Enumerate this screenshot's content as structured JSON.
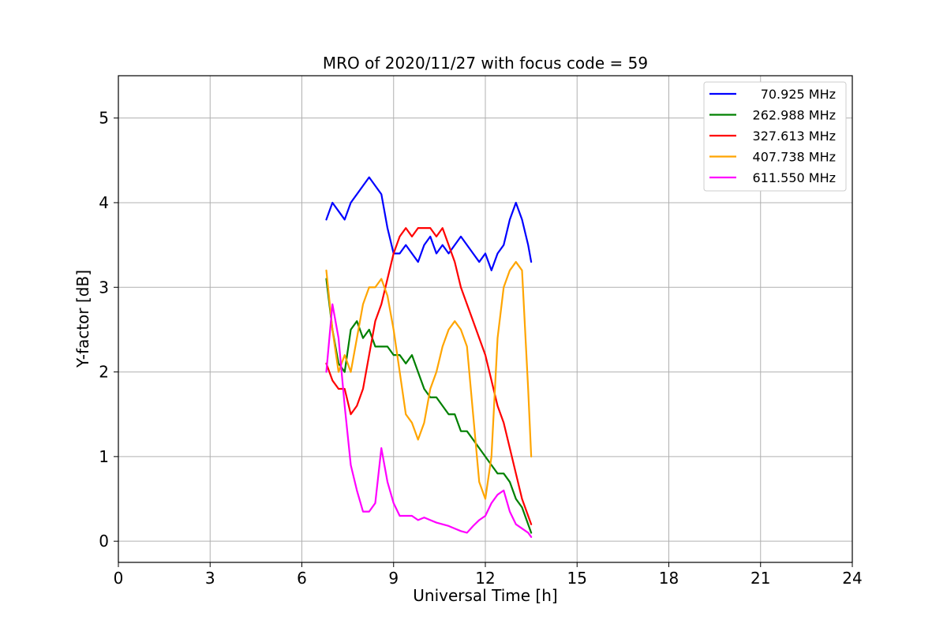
{
  "chart_data": {
    "type": "line",
    "title": "MRO of 2020/11/27 with focus code = 59",
    "xlabel": "Universal Time [h]",
    "ylabel": "Y-factor [dB]",
    "xlim": [
      0,
      24
    ],
    "ylim": [
      -0.25,
      5.5
    ],
    "xticks": [
      0,
      3,
      6,
      9,
      12,
      15,
      18,
      21,
      24
    ],
    "yticks": [
      0,
      1,
      2,
      3,
      4,
      5
    ],
    "grid": true,
    "legend_position": "top-right",
    "series": [
      {
        "name": "70.925 MHz",
        "color": "#0000ff",
        "x": [
          6.8,
          7.0,
          7.2,
          7.4,
          7.6,
          7.8,
          8.0,
          8.2,
          8.4,
          8.6,
          8.8,
          9.0,
          9.2,
          9.4,
          9.6,
          9.8,
          10.0,
          10.2,
          10.4,
          10.6,
          10.8,
          11.0,
          11.2,
          11.4,
          11.6,
          11.8,
          12.0,
          12.2,
          12.4,
          12.6,
          12.8,
          13.0,
          13.2,
          13.4,
          13.5
        ],
        "y": [
          3.8,
          4.0,
          3.9,
          3.8,
          4.0,
          4.1,
          4.2,
          4.3,
          4.2,
          4.1,
          3.7,
          3.4,
          3.4,
          3.5,
          3.4,
          3.3,
          3.5,
          3.6,
          3.4,
          3.5,
          3.4,
          3.5,
          3.6,
          3.5,
          3.4,
          3.3,
          3.4,
          3.2,
          3.4,
          3.5,
          3.8,
          4.0,
          3.8,
          3.5,
          3.3
        ]
      },
      {
        "name": "262.988 MHz",
        "color": "#008000",
        "x": [
          6.8,
          7.0,
          7.2,
          7.4,
          7.6,
          7.8,
          8.0,
          8.2,
          8.4,
          8.6,
          8.8,
          9.0,
          9.2,
          9.4,
          9.6,
          9.8,
          10.0,
          10.2,
          10.4,
          10.6,
          10.8,
          11.0,
          11.2,
          11.4,
          11.6,
          11.8,
          12.0,
          12.2,
          12.4,
          12.6,
          12.8,
          13.0,
          13.2,
          13.4,
          13.5
        ],
        "y": [
          3.1,
          2.5,
          2.1,
          2.0,
          2.5,
          2.6,
          2.4,
          2.5,
          2.3,
          2.3,
          2.3,
          2.2,
          2.2,
          2.1,
          2.2,
          2.0,
          1.8,
          1.7,
          1.7,
          1.6,
          1.5,
          1.5,
          1.3,
          1.3,
          1.2,
          1.1,
          1.0,
          0.9,
          0.8,
          0.8,
          0.7,
          0.5,
          0.4,
          0.2,
          0.1
        ]
      },
      {
        "name": "327.613 MHz",
        "color": "#ff0000",
        "x": [
          6.8,
          7.0,
          7.2,
          7.4,
          7.6,
          7.8,
          8.0,
          8.2,
          8.4,
          8.6,
          8.8,
          9.0,
          9.2,
          9.4,
          9.6,
          9.8,
          10.0,
          10.2,
          10.4,
          10.6,
          10.8,
          11.0,
          11.2,
          11.4,
          11.6,
          11.8,
          12.0,
          12.2,
          12.4,
          12.6,
          12.8,
          13.0,
          13.2,
          13.4,
          13.5
        ],
        "y": [
          2.1,
          1.9,
          1.8,
          1.8,
          1.5,
          1.6,
          1.8,
          2.2,
          2.6,
          2.8,
          3.1,
          3.4,
          3.6,
          3.7,
          3.6,
          3.7,
          3.7,
          3.7,
          3.6,
          3.7,
          3.5,
          3.3,
          3.0,
          2.8,
          2.6,
          2.4,
          2.2,
          1.9,
          1.6,
          1.4,
          1.1,
          0.8,
          0.5,
          0.3,
          0.2
        ]
      },
      {
        "name": "407.738 MHz",
        "color": "#ffa500",
        "x": [
          6.8,
          7.0,
          7.2,
          7.4,
          7.6,
          7.8,
          8.0,
          8.2,
          8.4,
          8.6,
          8.8,
          9.0,
          9.2,
          9.4,
          9.6,
          9.8,
          10.0,
          10.2,
          10.4,
          10.6,
          10.8,
          11.0,
          11.2,
          11.4,
          11.6,
          11.8,
          12.0,
          12.2,
          12.4,
          12.6,
          12.8,
          13.0,
          13.2,
          13.4,
          13.5
        ],
        "y": [
          3.2,
          2.5,
          2.0,
          2.2,
          2.0,
          2.4,
          2.8,
          3.0,
          3.0,
          3.1,
          2.9,
          2.5,
          2.0,
          1.5,
          1.4,
          1.2,
          1.4,
          1.8,
          2.0,
          2.3,
          2.5,
          2.6,
          2.5,
          2.3,
          1.5,
          0.7,
          0.5,
          1.0,
          2.4,
          3.0,
          3.2,
          3.3,
          3.2,
          1.8,
          1.0
        ]
      },
      {
        "name": "611.550 MHz",
        "color": "#ff00ff",
        "x": [
          6.8,
          7.0,
          7.2,
          7.4,
          7.6,
          7.8,
          8.0,
          8.2,
          8.4,
          8.6,
          8.8,
          9.0,
          9.2,
          9.4,
          9.6,
          9.8,
          10.0,
          10.2,
          10.4,
          10.6,
          10.8,
          11.0,
          11.2,
          11.4,
          11.6,
          11.8,
          12.0,
          12.2,
          12.4,
          12.6,
          12.8,
          13.0,
          13.2,
          13.4,
          13.5
        ],
        "y": [
          2.0,
          2.8,
          2.4,
          1.6,
          0.9,
          0.6,
          0.35,
          0.35,
          0.45,
          1.1,
          0.7,
          0.45,
          0.3,
          0.3,
          0.3,
          0.25,
          0.28,
          0.25,
          0.22,
          0.2,
          0.18,
          0.15,
          0.12,
          0.1,
          0.18,
          0.25,
          0.3,
          0.45,
          0.55,
          0.6,
          0.35,
          0.2,
          0.15,
          0.1,
          0.05
        ]
      }
    ]
  }
}
